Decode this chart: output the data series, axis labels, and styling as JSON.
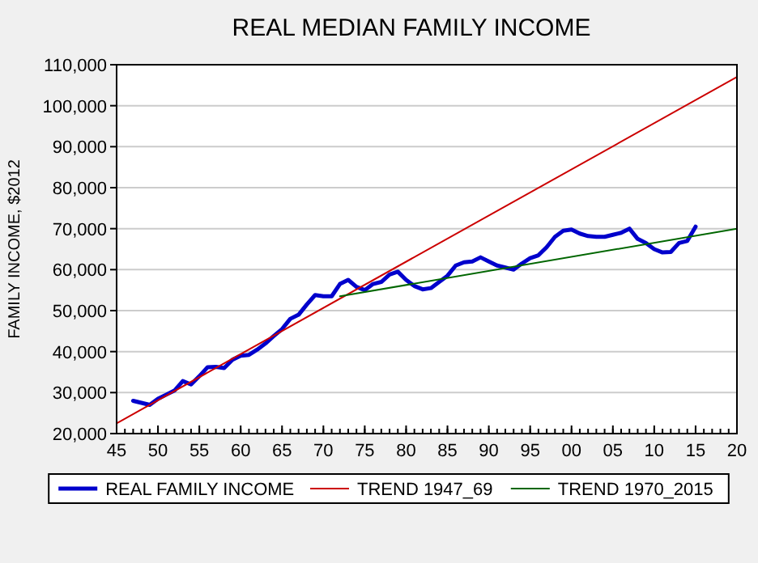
{
  "chart_data": {
    "type": "line",
    "title": "REAL MEDIAN FAMILY INCOME",
    "ylabel": "FAMILY INCOME, $2012",
    "xlim": [
      1945,
      2020
    ],
    "xticks": [
      {
        "value": 1945,
        "label": "45"
      },
      {
        "value": 1950,
        "label": "50"
      },
      {
        "value": 1955,
        "label": "55"
      },
      {
        "value": 1960,
        "label": "60"
      },
      {
        "value": 1965,
        "label": "65"
      },
      {
        "value": 1970,
        "label": "70"
      },
      {
        "value": 1975,
        "label": "75"
      },
      {
        "value": 1980,
        "label": "80"
      },
      {
        "value": 1985,
        "label": "85"
      },
      {
        "value": 1990,
        "label": "90"
      },
      {
        "value": 1995,
        "label": "95"
      },
      {
        "value": 2000,
        "label": "00"
      },
      {
        "value": 2005,
        "label": "05"
      },
      {
        "value": 2010,
        "label": "10"
      },
      {
        "value": 2015,
        "label": "15"
      },
      {
        "value": 2020,
        "label": "20"
      }
    ],
    "ylim": [
      20000,
      110000
    ],
    "yticks": [
      {
        "value": 20000,
        "label": "20,000"
      },
      {
        "value": 30000,
        "label": "30,000"
      },
      {
        "value": 40000,
        "label": "40,000"
      },
      {
        "value": 50000,
        "label": "50,000"
      },
      {
        "value": 60000,
        "label": "60,000"
      },
      {
        "value": 70000,
        "label": "70,000"
      },
      {
        "value": 80000,
        "label": "80,000"
      },
      {
        "value": 90000,
        "label": "90,000"
      },
      {
        "value": 100000,
        "label": "100,000"
      },
      {
        "value": 110000,
        "label": "110,000"
      }
    ],
    "grid": "y",
    "legend": "bottom",
    "marker": "none",
    "series": [
      {
        "name": "REAL FAMILY INCOME",
        "color": "#0000cc",
        "x": [
          1947,
          1948,
          1949,
          1950,
          1951,
          1952,
          1953,
          1954,
          1955,
          1956,
          1957,
          1958,
          1959,
          1960,
          1961,
          1962,
          1963,
          1964,
          1965,
          1966,
          1967,
          1968,
          1969,
          1970,
          1971,
          1972,
          1973,
          1974,
          1975,
          1976,
          1977,
          1978,
          1979,
          1980,
          1981,
          1982,
          1983,
          1984,
          1985,
          1986,
          1987,
          1988,
          1989,
          1990,
          1991,
          1992,
          1993,
          1994,
          1995,
          1996,
          1997,
          1998,
          1999,
          2000,
          2001,
          2002,
          2003,
          2004,
          2005,
          2006,
          2007,
          2008,
          2009,
          2010,
          2011,
          2012,
          2013,
          2014,
          2015
        ],
        "values": [
          28000,
          27500,
          27000,
          28500,
          29500,
          30500,
          32800,
          32000,
          34000,
          36200,
          36300,
          36000,
          38000,
          39000,
          39200,
          40500,
          42000,
          43800,
          45500,
          48000,
          49000,
          51500,
          53800,
          53500,
          53500,
          56500,
          57500,
          55800,
          55000,
          56500,
          57000,
          58800,
          59500,
          57500,
          56000,
          55200,
          55500,
          57000,
          58500,
          61000,
          61800,
          62000,
          63000,
          62000,
          61000,
          60500,
          60000,
          61500,
          62800,
          63500,
          65500,
          68000,
          69500,
          69800,
          68800,
          68200,
          68000,
          68000,
          68500,
          69000,
          70000,
          67500,
          66500,
          65000,
          64200,
          64300,
          66500,
          67000,
          70500
        ]
      },
      {
        "name": "TREND 1947_69",
        "color": "#cc0000",
        "x": [
          1945,
          2020
        ],
        "values": [
          22500,
          107000
        ]
      },
      {
        "name": "TREND 1970_2015",
        "color": "#006600",
        "x": [
          1972,
          2020
        ],
        "values": [
          53500,
          70000
        ]
      }
    ]
  }
}
